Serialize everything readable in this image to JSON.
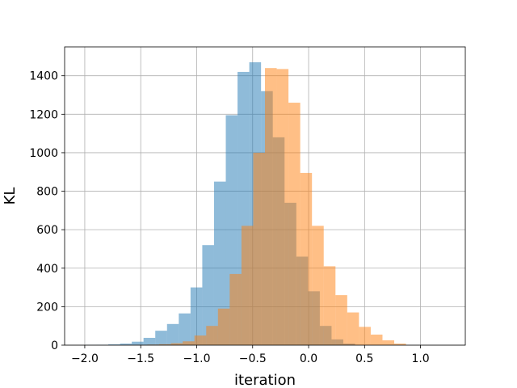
{
  "chart_data": {
    "type": "bar",
    "title": "",
    "xlabel": "iteration",
    "ylabel": "KL",
    "xlim": [
      -2.18,
      1.4
    ],
    "ylim": [
      0,
      1550
    ],
    "xticks": [
      -2.0,
      -1.5,
      -1.0,
      -0.5,
      0.0,
      0.5,
      1.0
    ],
    "xtick_labels": [
      "−2.0",
      "−1.5",
      "−1.0",
      "−0.5",
      "0.0",
      "0.5",
      "1.0"
    ],
    "yticks": [
      0,
      200,
      400,
      600,
      800,
      1000,
      1200,
      1400
    ],
    "ytick_labels": [
      "0",
      "200",
      "400",
      "600",
      "800",
      "1000",
      "1200",
      "1400"
    ],
    "grid": true,
    "legend": "none",
    "series": [
      {
        "color": "#1f77b4",
        "opacity": 0.5,
        "bin_edges": [
          -2.0,
          -1.895,
          -1.79,
          -1.685,
          -1.58,
          -1.475,
          -1.37,
          -1.265,
          -1.16,
          -1.055,
          -0.95,
          -0.845,
          -0.74,
          -0.635,
          -0.53,
          -0.425,
          -0.32,
          -0.215,
          -0.11,
          -0.005,
          0.1,
          0.205,
          0.31,
          0.415
        ],
        "counts": [
          1,
          2,
          4,
          8,
          18,
          38,
          75,
          110,
          165,
          300,
          520,
          850,
          1195,
          1420,
          1470,
          1320,
          1080,
          740,
          460,
          280,
          100,
          30,
          8
        ]
      },
      {
        "color": "#ff7f0e",
        "opacity": 0.5,
        "bin_edges": [
          -1.65,
          -1.545,
          -1.44,
          -1.335,
          -1.23,
          -1.125,
          -1.02,
          -0.915,
          -0.81,
          -0.705,
          -0.6,
          -0.495,
          -0.39,
          -0.285,
          -0.18,
          -0.075,
          0.03,
          0.135,
          0.24,
          0.345,
          0.45,
          0.555,
          0.66,
          0.765,
          0.87
        ],
        "counts": [
          1,
          2,
          3,
          5,
          10,
          20,
          50,
          100,
          190,
          370,
          620,
          1000,
          1440,
          1435,
          1260,
          895,
          620,
          410,
          260,
          170,
          95,
          55,
          25,
          8
        ]
      }
    ]
  }
}
